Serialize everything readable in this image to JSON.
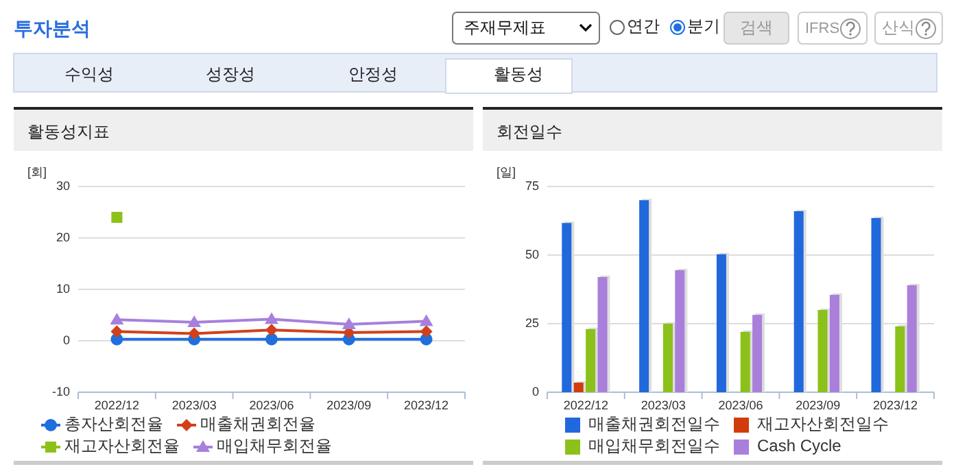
{
  "chart_data": [
    {
      "type": "other",
      "title": "투자분석",
      "annotations": [
        "주재무제표",
        "연간",
        "분기",
        "검색",
        "IFRS",
        "산식",
        "수익성",
        "성장성",
        "안정성",
        "활동성"
      ]
    },
    {
      "type": "line",
      "title": "활동성지표",
      "ylabel": "[회]",
      "categories": [
        "2022/12",
        "2023/03",
        "2023/06",
        "2023/09",
        "2023/12"
      ],
      "ylim": [
        -10,
        30
      ],
      "yticks": [
        -10,
        0,
        10,
        20,
        30
      ],
      "grid": "y",
      "legend": "bottom",
      "series": [
        {
          "name": "총자산회전율",
          "color": "#1f6fde",
          "marker": "circle",
          "values": [
            0.3,
            0.3,
            0.3,
            0.3,
            0.3
          ]
        },
        {
          "name": "매출채권회전율",
          "color": "#d2401a",
          "marker": "diamond",
          "values": [
            1.8,
            1.4,
            2.1,
            1.6,
            1.8
          ]
        },
        {
          "name": "재고자산회전율",
          "color": "#8cc11a",
          "marker": "square",
          "values": [
            24.0,
            null,
            null,
            null,
            null
          ]
        },
        {
          "name": "매입채무회전율",
          "color": "#a680dc",
          "marker": "triangle",
          "values": [
            4.1,
            3.6,
            4.2,
            3.2,
            3.8
          ]
        }
      ]
    },
    {
      "type": "bar",
      "title": "회전일수",
      "ylabel": "[일]",
      "categories": [
        "2022/12",
        "2023/03",
        "2023/06",
        "2023/09",
        "2023/12"
      ],
      "ylim": [
        0,
        75
      ],
      "yticks": [
        0,
        25,
        50,
        75
      ],
      "grid": "y",
      "legend": "bottom",
      "series": [
        {
          "name": "매출채권회전일수",
          "color": "#2168dc",
          "values": [
            61.7,
            70,
            50.3,
            66,
            63.5
          ]
        },
        {
          "name": "재고자산회전일수",
          "color": "#d23c0a",
          "values": [
            3.5,
            null,
            null,
            null,
            null
          ]
        },
        {
          "name": "매입채무회전일수",
          "color": "#8bc11a",
          "values": [
            23,
            25,
            22,
            30,
            24
          ]
        },
        {
          "name": "Cash Cycle",
          "color": "#a97fdb",
          "values": [
            42,
            44.5,
            28.2,
            35.5,
            39
          ]
        }
      ]
    }
  ]
}
